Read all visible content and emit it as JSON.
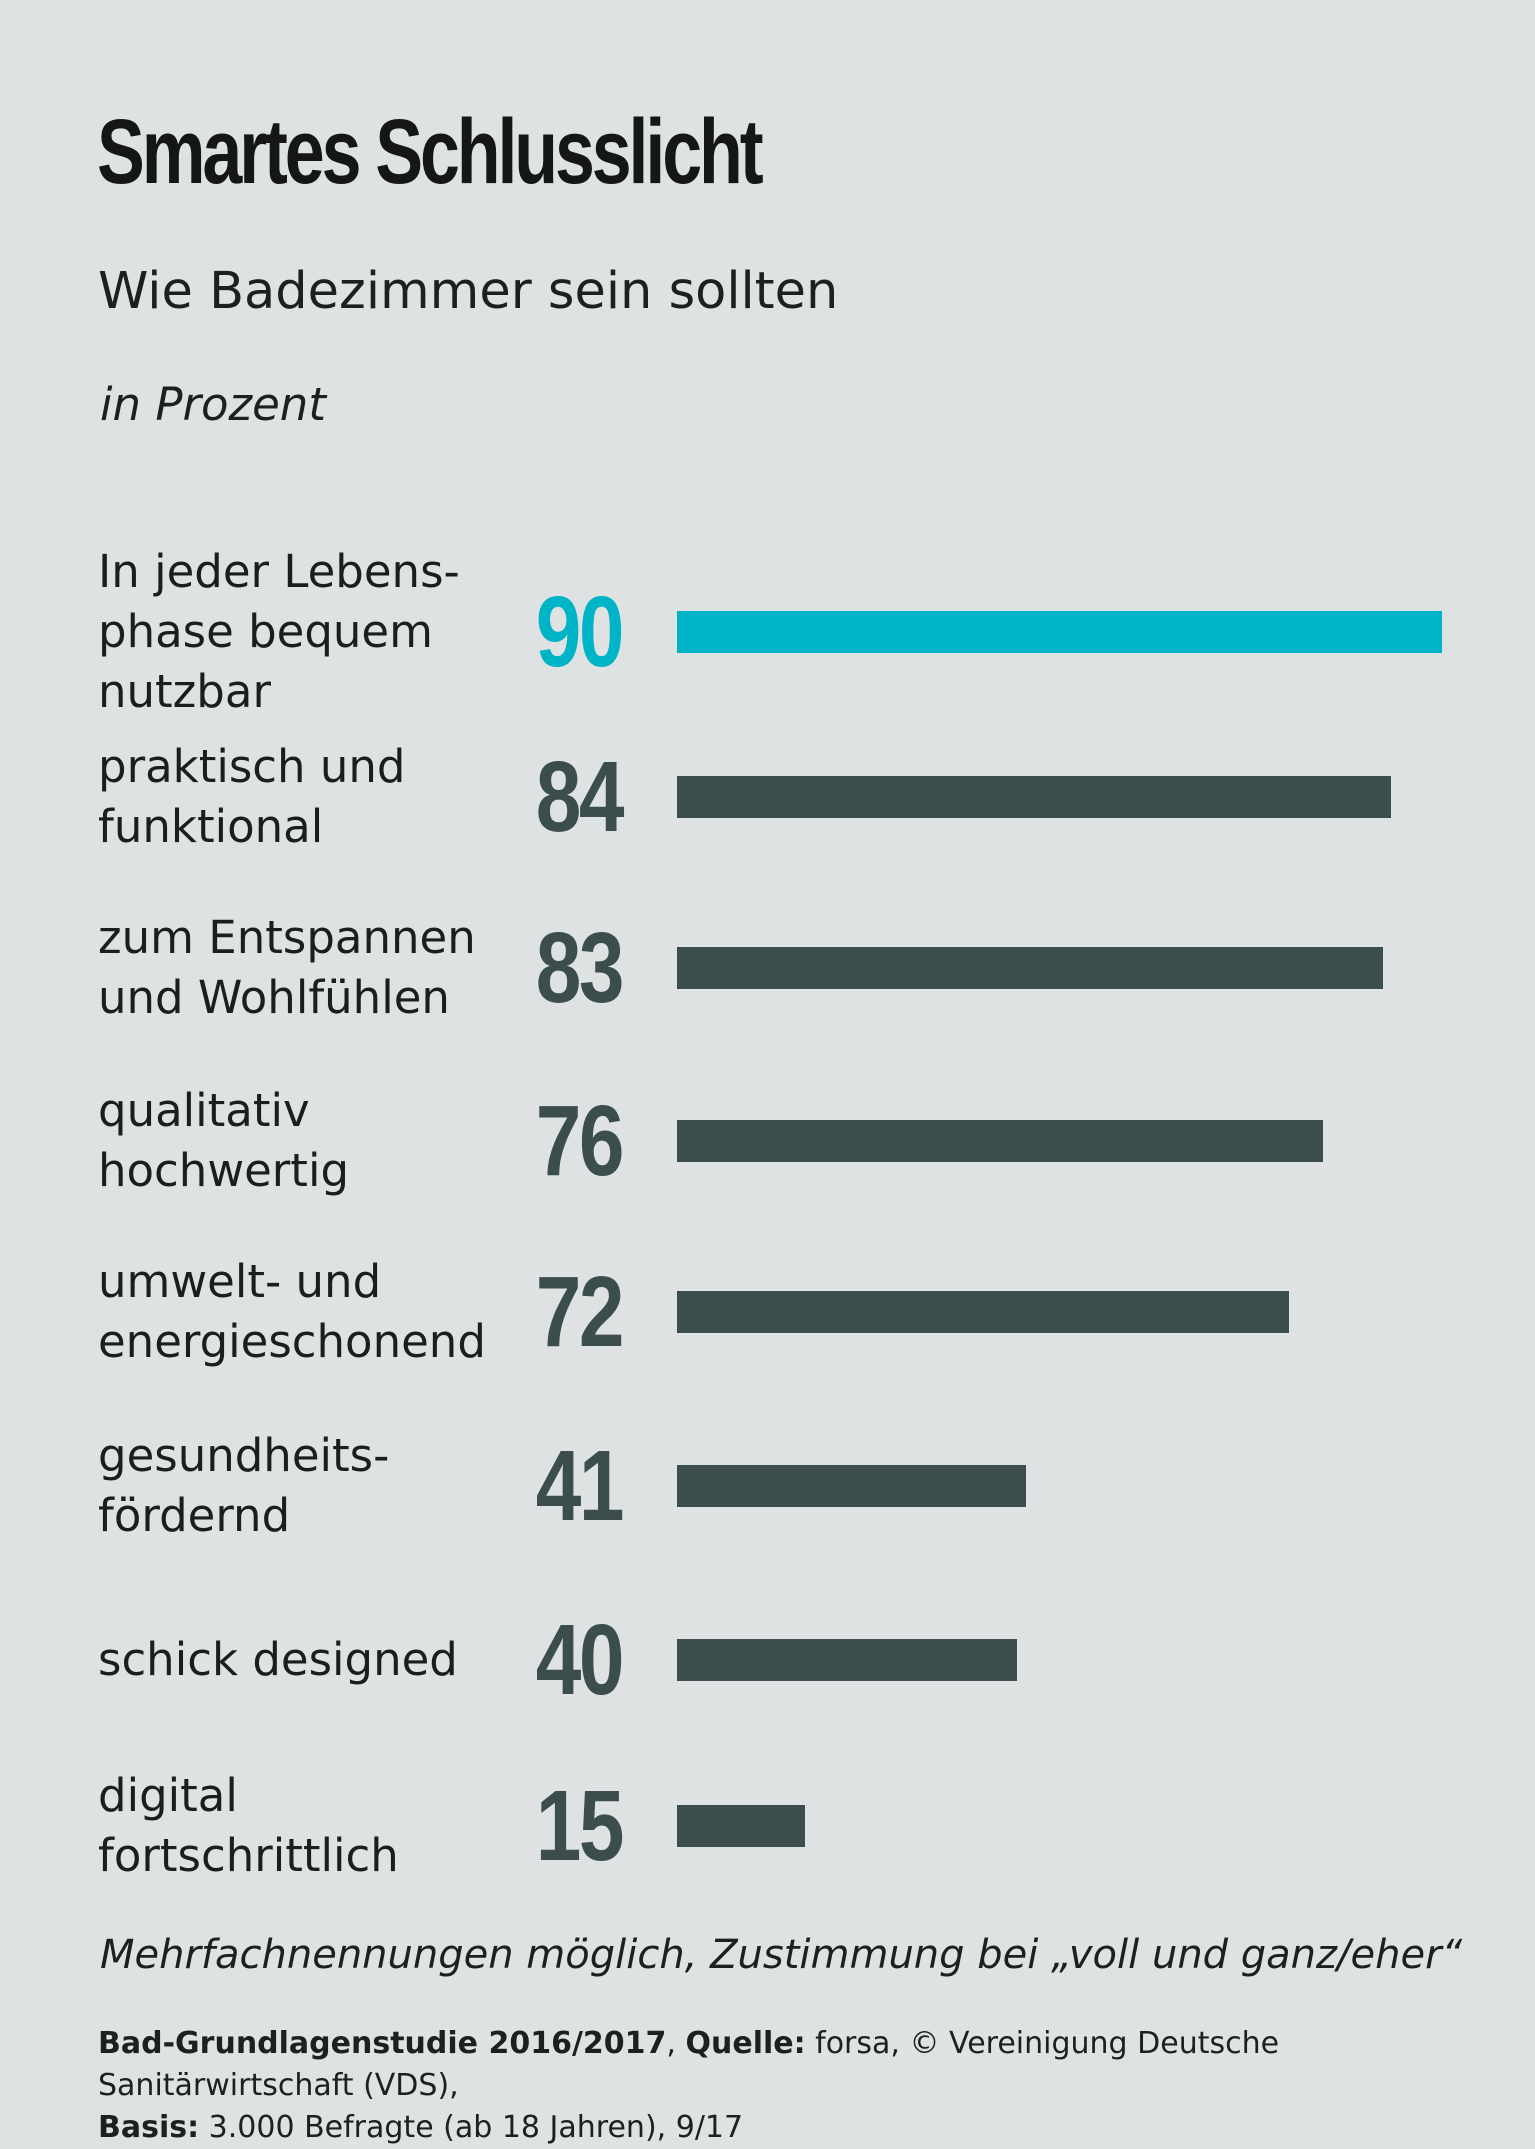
{
  "chart_data": {
    "type": "bar",
    "orientation": "horizontal",
    "title": "Smartes Schlusslicht",
    "subtitle": "Wie Badezimmer sein sollten",
    "unit_label": "in Prozent",
    "categories": [
      "In jeder Lebens-\nphase bequem\nnutzbar",
      "praktisch und\nfunktional",
      "zum Entspannen\nund Wohlfühlen",
      "qualitativ\nhochwertig",
      "umwelt- und\nenergieschonend",
      "gesundheits-\nfördernd",
      "schick designed",
      "digital\nfortschrittlich"
    ],
    "values": [
      90,
      84,
      83,
      76,
      72,
      41,
      40,
      15
    ],
    "xlim": [
      0,
      90
    ],
    "highlight_index": 0,
    "grid": false,
    "colors": {
      "highlight": "#00b4c8",
      "default": "#3c4d4d"
    }
  },
  "footnote": "Mehrfachnennungen möglich, Zustimmung bei „voll und ganz/eher“",
  "source": {
    "study_label": "Bad-Grundlagenstudie 2016/2017",
    "sep1": ", ",
    "quelle_label": "Quelle:",
    "quelle_text": " forsa, © Vereinigung Deutsche Sanitärwirtschaft (VDS),",
    "basis_label": "Basis:",
    "basis_text": " 3.000 Befragte (ab 18 Jahren), 9/17"
  }
}
